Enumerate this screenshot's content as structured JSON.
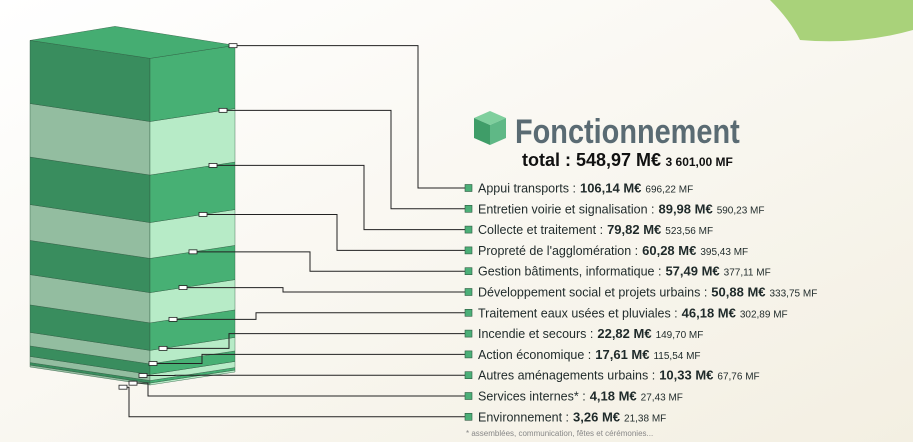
{
  "chart_data": {
    "type": "stack",
    "title": "Fonctionnement",
    "total": 548.97,
    "total_label": "total : 548,97 M€",
    "total_mf": 3601.0,
    "total_mf_label": "3 601,00 MF",
    "categories": [
      "Appui transports :",
      "Entretien voirie et signalisation :",
      "Collecte et traitement :",
      "Propreté de l'agglomération :",
      "Gestion bâtiments, informatique :",
      "Développement social et projets urbains :",
      "Traitement eaux usées et pluviales :",
      "Incendie et secours :",
      "Action économique :",
      "Autres aménagements urbains :",
      "Services internes* :",
      "Environnement :"
    ],
    "values": [
      106.14,
      89.98,
      79.82,
      60.28,
      57.49,
      50.88,
      46.18,
      22.82,
      17.61,
      10.33,
      4.18,
      3.26
    ],
    "value_labels": [
      "106,14 M€",
      "89,98 M€",
      "79,82 M€",
      "60,28 M€",
      "57,49 M€",
      "50,88 M€",
      "46,18 M€",
      "22,82 M€",
      "17,61 M€",
      "10,33 M€",
      "4,18 M€",
      "3,26 M€"
    ],
    "values_mf": [
      696.22,
      590.23,
      523.56,
      395.43,
      377.11,
      333.75,
      302.89,
      149.7,
      115.54,
      67.76,
      27.43,
      21.38
    ],
    "value_labels_mf": [
      "696,22 MF",
      "590,23 MF",
      "523,56 MF",
      "395,43 MF",
      "377,11 MF",
      "333,75 MF",
      "302,89 MF",
      "149,70 MF",
      "115,54 MF",
      "67,76 MF",
      "27,43 MF",
      "21,38 MF"
    ],
    "colors": [
      "#3f9d68",
      "#a3d2b2"
    ],
    "footnote": "* assemblées, communication, fêtes et cérémonies..."
  }
}
